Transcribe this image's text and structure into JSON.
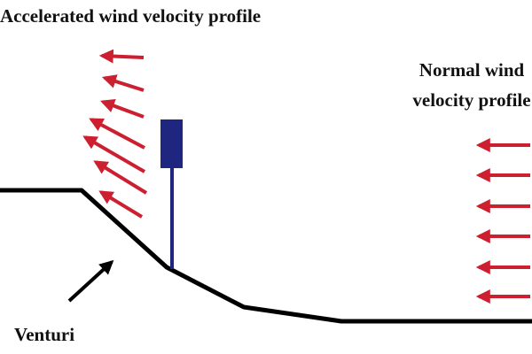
{
  "labels": {
    "accelerated": "Accelerated wind velocity profile",
    "normal_line1": "Normal wind",
    "normal_line2": "velocity profile",
    "venturi": "Venturi"
  },
  "colors": {
    "arrow": "#cc1f2f",
    "terrain": "#000000",
    "turbine": "#1f2680",
    "background": "#ffffff"
  },
  "icons": {
    "wind_arrow": "left-arrow-icon",
    "pointer": "pointer-arrow-icon",
    "turbine": "turbine-icon"
  }
}
